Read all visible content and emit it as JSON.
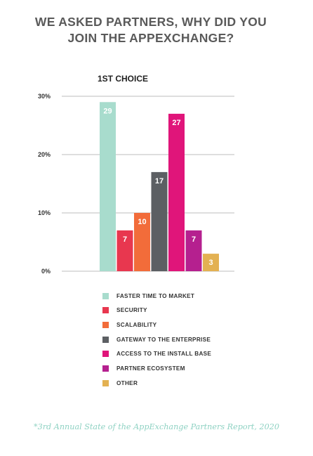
{
  "header": {
    "title_line1": "WE ASKED PARTNERS, WHY DID YOU",
    "title_line2": "JOIN THE APPEXCHANGE?"
  },
  "footer": {
    "source": "*3rd Annual State of the AppExchange Partners Report, 2020"
  },
  "chart_data": {
    "type": "bar",
    "title": "1ST CHOICE",
    "xlabel": "",
    "ylabel": "",
    "ylim": [
      0,
      30
    ],
    "yticks": [
      {
        "value": 0,
        "label": "0%"
      },
      {
        "value": 10,
        "label": "10%"
      },
      {
        "value": 20,
        "label": "20%"
      },
      {
        "value": 30,
        "label": "30%"
      }
    ],
    "grid": true,
    "legend_position": "bottom",
    "categories": [
      "FASTER TIME TO MARKET",
      "SECURITY",
      "SCALABILITY",
      "GATEWAY TO THE ENTERPRISE",
      "ACCESS TO THE INSTALL BASE",
      "PARTNER ECOSYSTEM",
      "OTHER"
    ],
    "values": [
      29,
      7,
      10,
      17,
      27,
      7,
      3
    ],
    "data_labels": [
      "29",
      "7",
      "10",
      "17",
      "27",
      "7",
      "3"
    ],
    "colors": [
      "#a8dccd",
      "#e8374f",
      "#f26c3a",
      "#5c5f63",
      "#e0157a",
      "#b5208f",
      "#e3b152"
    ]
  }
}
